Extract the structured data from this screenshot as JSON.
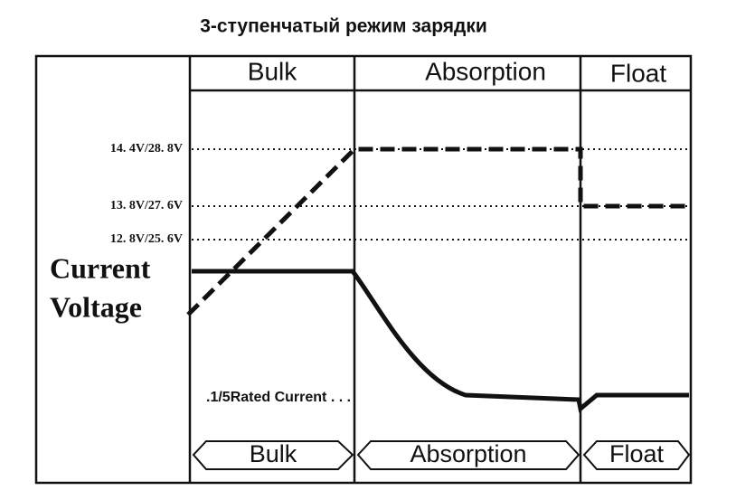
{
  "title": "3-ступенчатый режим зарядки",
  "header": {
    "stages": [
      "Bulk",
      "Absorption",
      "Float"
    ]
  },
  "voltage_levels": [
    "14. 4V/28. 8V",
    "13. 8V/27. 6V",
    "12. 8V/25. 6V"
  ],
  "axis_labels": {
    "current": "Current",
    "voltage": "Voltage"
  },
  "note": ".1/5Rated Current . . .",
  "footer": {
    "stages": [
      "Bulk",
      "Absorption",
      "Float"
    ]
  }
}
